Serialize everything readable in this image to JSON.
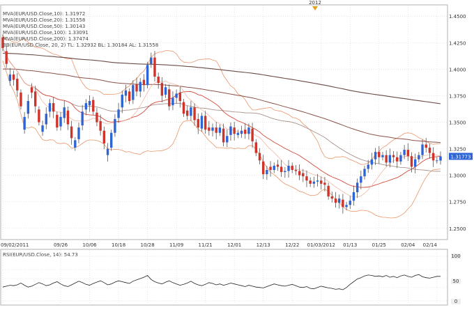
{
  "colors": {
    "up": "#2d64d6",
    "down": "#d0332a",
    "mva10": "#f2b8a6",
    "mva20": "#d24a3a",
    "mva50": "#a8908a",
    "mva100": "#8a5048",
    "mva200": "#6a4a44",
    "bollinger": "#e9966a",
    "rsi": "#222222",
    "grid": "#dcdcdc",
    "last_price_bg": "#2d64d6"
  },
  "indicators": [
    {
      "text": "MVA(EUR/USD.Close,10): 1.31972",
      "color": "#e8a090"
    },
    {
      "text": "MVA(EUR/USD.Close,20): 1.31558",
      "color": "#d24a3a"
    },
    {
      "text": "MVA(EUR/USD.Close,50): 1.30143",
      "color": "#666666"
    },
    {
      "text": "MVA(EUR/USD.Close,100): 1.33091",
      "color": "#444444"
    },
    {
      "text": "MVA(EUR/USD.Close,200): 1.37474",
      "color": "#222222"
    },
    {
      "text": "BB(EUR/USD.Close, 20, 2)   TL: 1.32932  BL: 1.30184  AL: 1.31558",
      "color": "#e0a070"
    }
  ],
  "year_marker": "2012",
  "last_price": "1.31773",
  "rsi": {
    "label": "RSI(EUR/USD.Close, 14): 54.73",
    "ticks": [
      "100",
      "50",
      "0"
    ]
  },
  "chart_data": [
    {
      "type": "candlestick",
      "title": "",
      "xlabel": "",
      "ylabel": "",
      "ylim": [
        1.24,
        1.46
      ],
      "y_ticks": [
        "1.4500",
        "1.4250",
        "1.4000",
        "1.3750",
        "1.3500",
        "1.3250",
        "1.3000",
        "1.2750",
        "1.2500"
      ],
      "x_labels": [
        {
          "label": "09/02/2011",
          "index": 0
        },
        {
          "label": "09/26",
          "index": 16
        },
        {
          "label": "10/06",
          "index": 24
        },
        {
          "label": "10/18",
          "index": 32
        },
        {
          "label": "10/28",
          "index": 40
        },
        {
          "label": "11/09",
          "index": 48
        },
        {
          "label": "11/21",
          "index": 56
        },
        {
          "label": "12/01",
          "index": 64
        },
        {
          "label": "12/13",
          "index": 72
        },
        {
          "label": "12/22",
          "index": 80
        },
        {
          "label": "01/03/2012",
          "index": 88
        },
        {
          "label": "01/13",
          "index": 96
        },
        {
          "label": "01/25",
          "index": 104
        },
        {
          "label": "02/04",
          "index": 112
        },
        {
          "label": "02/14",
          "index": 120
        }
      ],
      "grid": true,
      "close": [
        1.42,
        1.405,
        1.395,
        1.39,
        1.38,
        1.365,
        1.355,
        1.37,
        1.378,
        1.365,
        1.35,
        1.347,
        1.358,
        1.368,
        1.36,
        1.345,
        1.355,
        1.364,
        1.348,
        1.335,
        1.333,
        1.345,
        1.36,
        1.368,
        1.37,
        1.36,
        1.35,
        1.342,
        1.33,
        1.325,
        1.34,
        1.353,
        1.362,
        1.376,
        1.38,
        1.37,
        1.385,
        1.379,
        1.388,
        1.385,
        1.404,
        1.411,
        1.393,
        1.387,
        1.375,
        1.383,
        1.365,
        1.373,
        1.377,
        1.37,
        1.358,
        1.356,
        1.364,
        1.352,
        1.345,
        1.356,
        1.343,
        1.342,
        1.345,
        1.34,
        1.345,
        1.331,
        1.337,
        1.346,
        1.339,
        1.34,
        1.342,
        1.339,
        1.345,
        1.332,
        1.321,
        1.314,
        1.301,
        1.305,
        1.305,
        1.309,
        1.308,
        1.303,
        1.304,
        1.309,
        1.305,
        1.304,
        1.3,
        1.299,
        1.295,
        1.292,
        1.294,
        1.295,
        1.292,
        1.291,
        1.28,
        1.278,
        1.274,
        1.278,
        1.27,
        1.272,
        1.276,
        1.284,
        1.293,
        1.299,
        1.306,
        1.31,
        1.315,
        1.322,
        1.317,
        1.319,
        1.312,
        1.319,
        1.317,
        1.313,
        1.319,
        1.324,
        1.318,
        1.308,
        1.315,
        1.319,
        1.329,
        1.326,
        1.321,
        1.314,
        1.314,
        1.3178
      ],
      "open_offset": [
        0.01,
        0.012,
        -0.006,
        0.005,
        0.011,
        0.013,
        -0.012,
        -0.012,
        0.005,
        0.014,
        0.012,
        -0.006,
        -0.01,
        -0.008,
        0.008,
        0.012,
        -0.009,
        -0.01,
        0.013,
        0.011,
        -0.007,
        -0.011,
        -0.013,
        -0.006,
        -0.004,
        0.011,
        0.009,
        0.009,
        0.012,
        -0.006,
        -0.014,
        -0.013,
        -0.008,
        -0.012,
        -0.005,
        0.009,
        -0.014,
        0.007,
        -0.009,
        0.005,
        -0.019,
        -0.006,
        0.018,
        0.006,
        0.012,
        -0.007,
        0.016,
        -0.007,
        -0.004,
        0.008,
        0.011,
        0.005,
        -0.008,
        0.012,
        0.008,
        -0.012,
        0.013,
        0.003,
        -0.003,
        0.005,
        -0.005,
        0.013,
        -0.006,
        -0.008,
        0.006,
        -0.002,
        -0.003,
        0.004,
        -0.006,
        0.012,
        0.01,
        0.007,
        0.012,
        -0.004,
        0.003,
        -0.004,
        0.002,
        0.005,
        -0.001,
        -0.005,
        0.004,
        0.001,
        0.004,
        0.003,
        0.004,
        0.003,
        -0.002,
        -0.001,
        0.003,
        0.002,
        0.01,
        0.002,
        0.004,
        -0.004,
        0.007,
        -0.002,
        -0.004,
        -0.008,
        -0.009,
        -0.006,
        -0.007,
        -0.004,
        -0.005,
        -0.007,
        0.005,
        -0.002,
        0.007,
        -0.007,
        0.002,
        0.004,
        -0.006,
        -0.005,
        0.006,
        0.01,
        -0.007,
        -0.004,
        -0.01,
        0.003,
        0.005,
        0.007,
        0.0,
        -0.004
      ]
    },
    {
      "type": "line",
      "title": "",
      "xlabel": "",
      "ylabel": "",
      "ylim": [
        0,
        100
      ],
      "series": [
        {
          "name": "RSI(EUR/USD.Close, 14)",
          "values": [
            31,
            33,
            35,
            34,
            36,
            40,
            35,
            31,
            33,
            37,
            41,
            38,
            34,
            36,
            40,
            43,
            38,
            34,
            32,
            36,
            40,
            44,
            41,
            37,
            35,
            39,
            42,
            45,
            41,
            36,
            38,
            42,
            45,
            43,
            41,
            39,
            44,
            47,
            50,
            53,
            57,
            48,
            43,
            40,
            38,
            42,
            45,
            41,
            38,
            35,
            37,
            40,
            44,
            39,
            36,
            34,
            37,
            41,
            39,
            36,
            38,
            35,
            37,
            40,
            38,
            36,
            34,
            32,
            35,
            33,
            31,
            30,
            29,
            32,
            35,
            38,
            36,
            34,
            33,
            35,
            37,
            34,
            31,
            30,
            32,
            28,
            27,
            30,
            33,
            31,
            29,
            28,
            26,
            27,
            25,
            30,
            37,
            43,
            49,
            52,
            56,
            58,
            57,
            55,
            56,
            54,
            57,
            53,
            55,
            52,
            56,
            58,
            55,
            53,
            57,
            59,
            54,
            52,
            51,
            53,
            55,
            55
          ]
        }
      ]
    }
  ]
}
